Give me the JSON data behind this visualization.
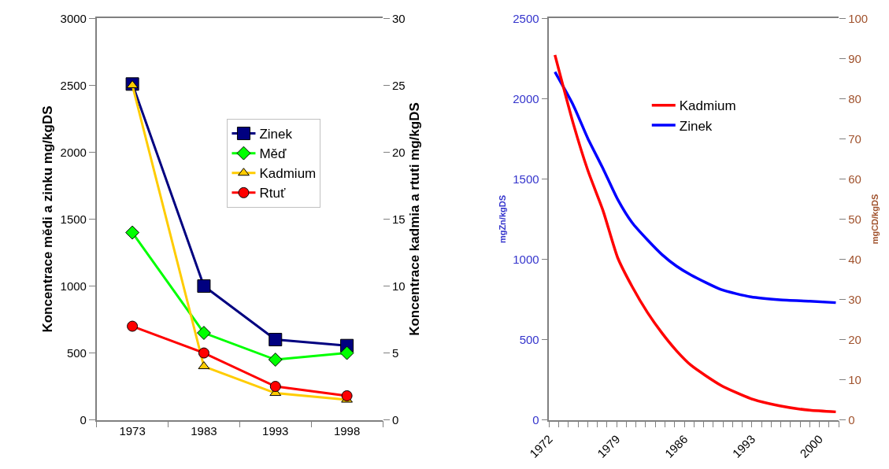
{
  "chart_data": [
    {
      "type": "line",
      "categories": [
        "1973",
        "1983",
        "1993",
        "1998"
      ],
      "ylabel": "Koncentrace mědi a zinku mg/kgDS",
      "y2label": "Koncentrace kadmia a rtuti mg/kgDS",
      "ylim": [
        0,
        3000
      ],
      "yticks": [
        0,
        500,
        1000,
        1500,
        2000,
        2500,
        3000
      ],
      "y2lim": [
        0,
        30
      ],
      "y2ticks": [
        0,
        5,
        10,
        15,
        20,
        25,
        30
      ],
      "legend": "top right",
      "series": [
        {
          "name": "Zinek",
          "color": "#000080",
          "marker": "square",
          "values": [
            2510,
            1000,
            600,
            555
          ]
        },
        {
          "name": "Měď",
          "color": "#00ff00",
          "marker": "diamond",
          "values": [
            1400,
            650,
            450,
            500
          ]
        },
        {
          "name": "Kadmium",
          "color": "#ffcc00",
          "marker": "triangle",
          "axis": "y2",
          "values": [
            25,
            4,
            2,
            1.5
          ]
        },
        {
          "name": "Rtuť",
          "color": "#ff0000",
          "marker": "circle",
          "axis": "y2",
          "values": [
            7,
            5,
            2.5,
            1.8
          ]
        }
      ]
    },
    {
      "type": "line",
      "ylabel": "mgZn/kgDS",
      "y2label": "mgCD/kgDS",
      "xlim": [
        1972,
        2002
      ],
      "xticks": [
        1972,
        {
          "value": 1973,
          "label": null
        },
        {
          "value": 1974,
          "label": null
        },
        {
          "value": 1975,
          "label": null
        },
        {
          "value": 1976,
          "label": null
        },
        {
          "value": 1977,
          "label": null
        },
        {
          "value": 1978,
          "label": null
        },
        1979,
        {
          "value": 1980,
          "label": null
        },
        {
          "value": 1981,
          "label": null
        },
        {
          "value": 1982,
          "label": null
        },
        {
          "value": 1983,
          "label": null
        },
        {
          "value": 1984,
          "label": null
        },
        {
          "value": 1985,
          "label": null
        },
        1986,
        {
          "value": 1987,
          "label": null
        },
        {
          "value": 1988,
          "label": null
        },
        {
          "value": 1989,
          "label": null
        },
        {
          "value": 1990,
          "label": null
        },
        {
          "value": 1991,
          "label": null
        },
        {
          "value": 1992,
          "label": null
        },
        1993,
        {
          "value": 1994,
          "label": null
        },
        {
          "value": 1995,
          "label": null
        },
        {
          "value": 1996,
          "label": null
        },
        {
          "value": 1997,
          "label": null
        },
        {
          "value": 1998,
          "label": null
        },
        {
          "value": 1999,
          "label": null
        },
        2000,
        {
          "value": 2001,
          "label": null
        },
        {
          "value": 2002,
          "label": null
        }
      ],
      "ylim": [
        0,
        2500
      ],
      "yticks": [
        0,
        500,
        1000,
        1500,
        2000,
        2500
      ],
      "y2lim": [
        0,
        100
      ],
      "y2ticks": [
        0,
        10,
        20,
        30,
        40,
        50,
        60,
        70,
        80,
        90,
        100
      ],
      "legend": "top",
      "marker": "none",
      "series": [
        {
          "name": "Kadmium",
          "color": "#ff0000",
          "axis": "y2",
          "x": [
            1972.6,
            1974.5,
            1976.0,
            1977.6,
            1979.1,
            1980.6,
            1982.2,
            1983.7,
            1985.2,
            1986.7,
            1989.8,
            1992.9,
            1995.9,
            1999.0,
            2001.7
          ],
          "values": [
            90.9,
            73.8,
            62.2,
            52.0,
            40.4,
            33.2,
            26.7,
            21.6,
            17.2,
            13.6,
            8.6,
            5.3,
            3.5,
            2.4,
            2.0
          ]
        },
        {
          "name": "Zinek",
          "color": "#0000ff",
          "x": [
            1972.6,
            1974.5,
            1976.0,
            1977.6,
            1979.1,
            1980.6,
            1982.2,
            1983.7,
            1985.2,
            1986.7,
            1989.8,
            1992.9,
            1995.9,
            1999.0,
            2001.7
          ],
          "values": [
            2167,
            1960,
            1754,
            1563,
            1373,
            1228,
            1120,
            1029,
            957,
            902,
            812,
            766,
            748,
            739,
            730
          ]
        }
      ]
    }
  ]
}
